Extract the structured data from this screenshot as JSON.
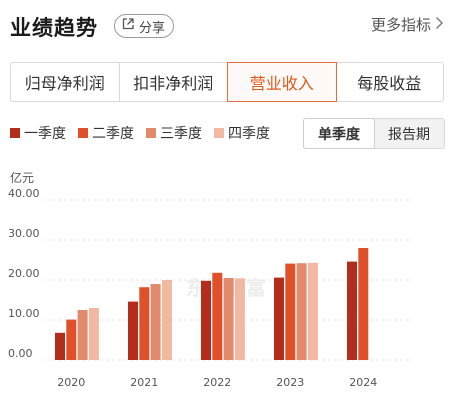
{
  "header": {
    "title": "业绩趋势",
    "share_label": "分享",
    "more_label": "更多指标"
  },
  "tabs": [
    {
      "label": "归母净利润",
      "active": false
    },
    {
      "label": "扣非净利润",
      "active": false
    },
    {
      "label": "营业收入",
      "active": true
    },
    {
      "label": "每股收益",
      "active": false
    }
  ],
  "toggle": {
    "options": [
      "单季度",
      "报告期"
    ],
    "selected": "单季度"
  },
  "unit_label": "亿元",
  "watermark": "东方财富",
  "colors": {
    "accent": "#d95b1e",
    "q1": "#b22d1c",
    "q2": "#e0512b",
    "q3": "#e28a6c",
    "q4": "#f1b9a1"
  },
  "chart_data": {
    "type": "bar",
    "categories": [
      "2020",
      "2021",
      "2022",
      "2023",
      "2024"
    ],
    "series": [
      {
        "name": "一季度",
        "values": [
          6.8,
          14.6,
          19.8,
          20.6,
          24.6
        ]
      },
      {
        "name": "二季度",
        "values": [
          10.1,
          18.2,
          21.8,
          24.1,
          28.0
        ]
      },
      {
        "name": "三季度",
        "values": [
          12.5,
          19.0,
          20.5,
          24.2,
          null
        ]
      },
      {
        "name": "四季度",
        "values": [
          13.0,
          20.0,
          20.4,
          24.3,
          null
        ]
      }
    ],
    "yticks": [
      "0.00",
      "10.00",
      "20.00",
      "30.00",
      "40.00"
    ],
    "ylim": [
      0,
      40
    ],
    "ylabel": "亿元",
    "grid": true,
    "legend": "top-left"
  }
}
